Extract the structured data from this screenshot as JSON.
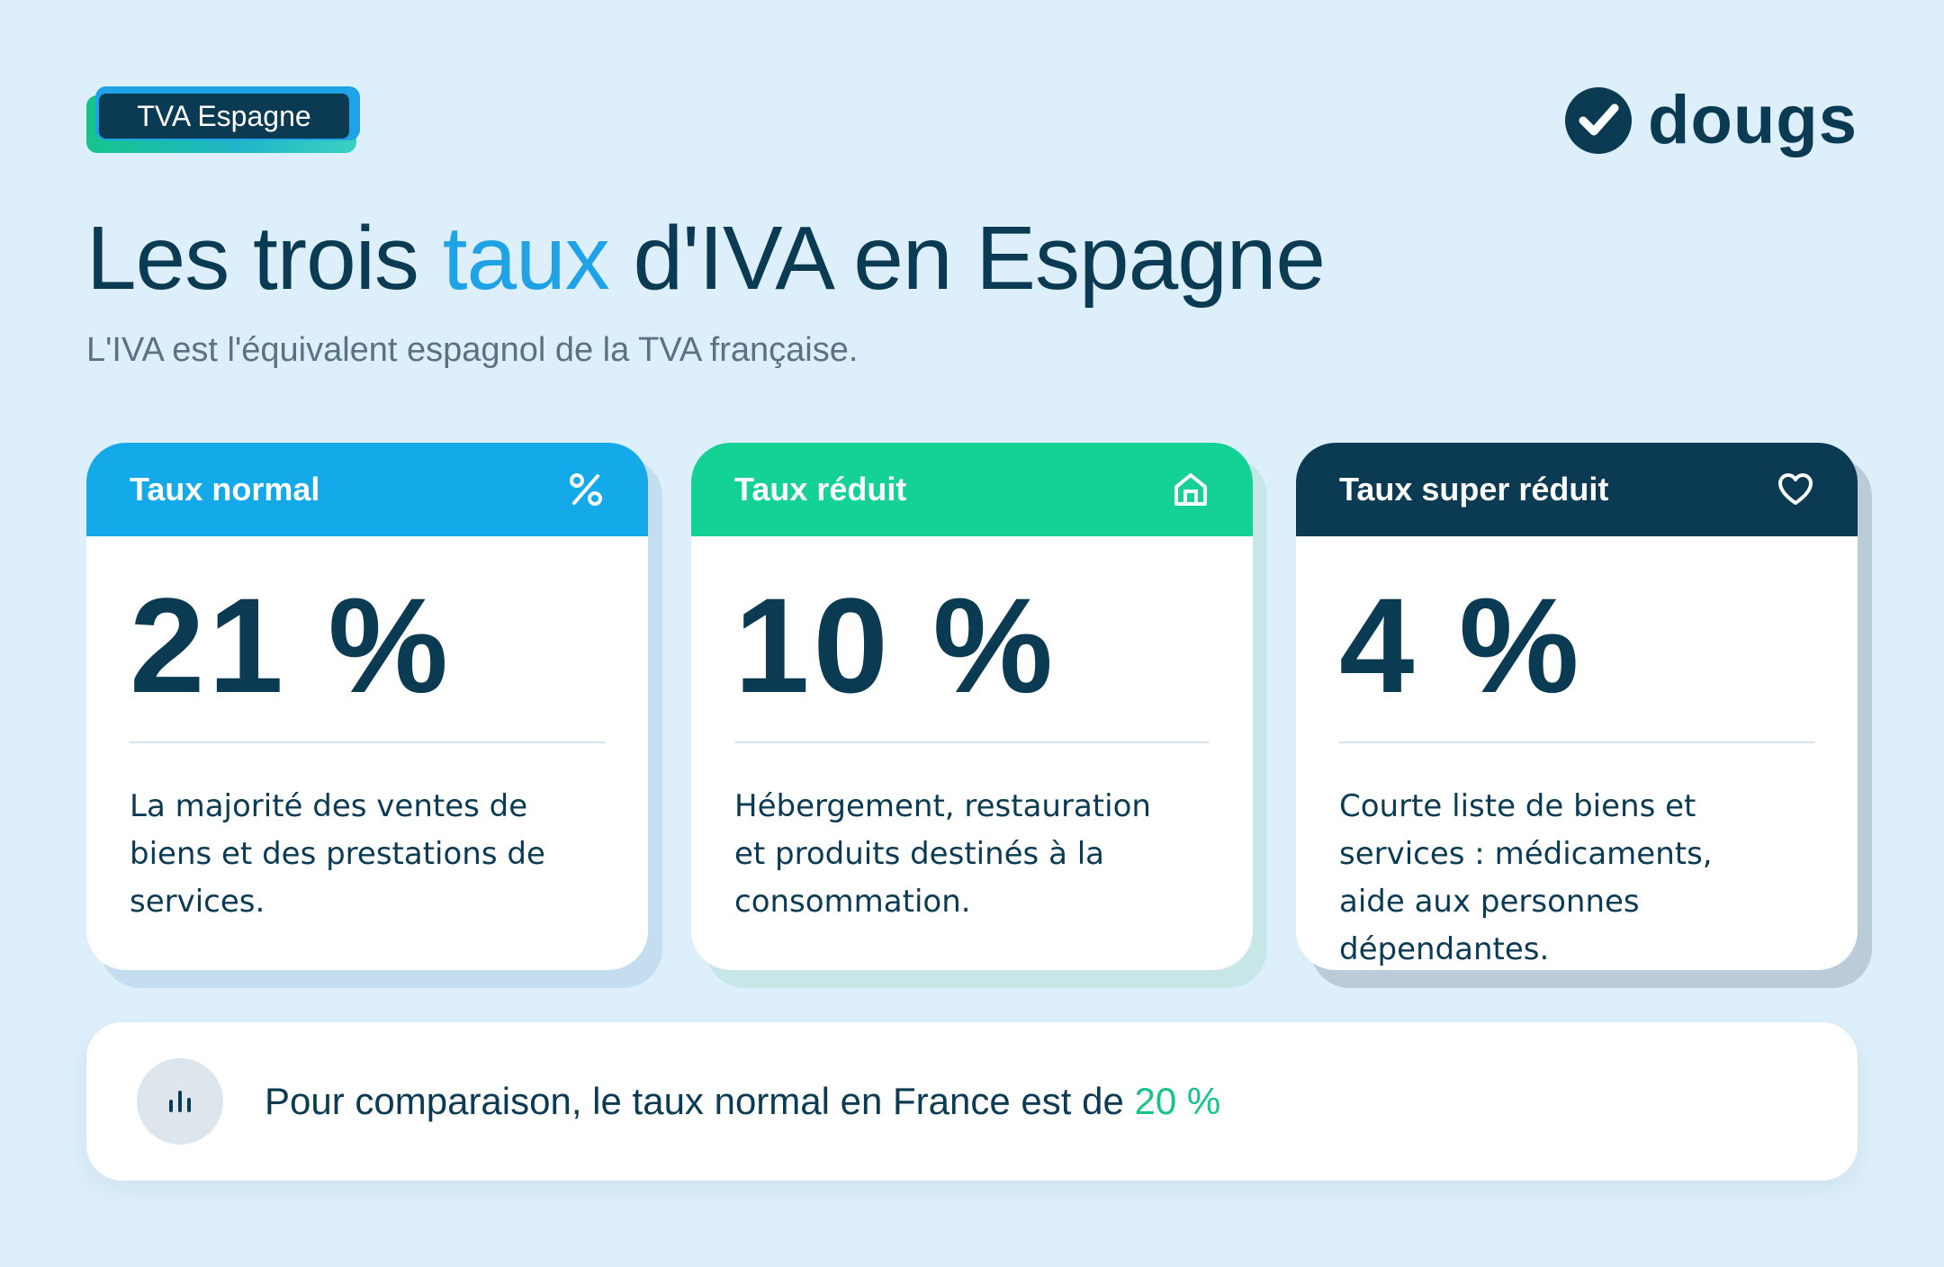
{
  "badge": {
    "label": "TVA Espagne"
  },
  "logo": {
    "text": "dougs",
    "icon": "check-circle-icon"
  },
  "header": {
    "title_before": "Les trois ",
    "title_accent": "taux",
    "title_after": " d'IVA en Espagne",
    "subtitle": "L'IVA est l'équivalent espagnol de la TVA française."
  },
  "cards": [
    {
      "title": "Taux normal",
      "icon": "percent-icon",
      "rate": "21 %",
      "description": "La majorité des ventes de biens et des prestations de services.",
      "color": "#14a9e9"
    },
    {
      "title": "Taux réduit",
      "icon": "house-icon",
      "rate": "10 %",
      "description": "Hébergement, restauration et produits destinés à la consommation.",
      "color": "#14d196"
    },
    {
      "title": "Taux super réduit",
      "icon": "heart-icon",
      "rate": "4 %",
      "description": "Courte liste de biens et services : médicaments, aide aux personnes dépendantes.",
      "color": "#0b3a53"
    }
  ],
  "comparison": {
    "icon": "bar-chart-icon",
    "text": "Pour comparaison, le taux normal en France est de ",
    "value": "20 %"
  },
  "colors": {
    "background": "#ddeffa",
    "dark": "#0b3a53",
    "blue": "#1fa2e6",
    "green": "#16c48a"
  }
}
